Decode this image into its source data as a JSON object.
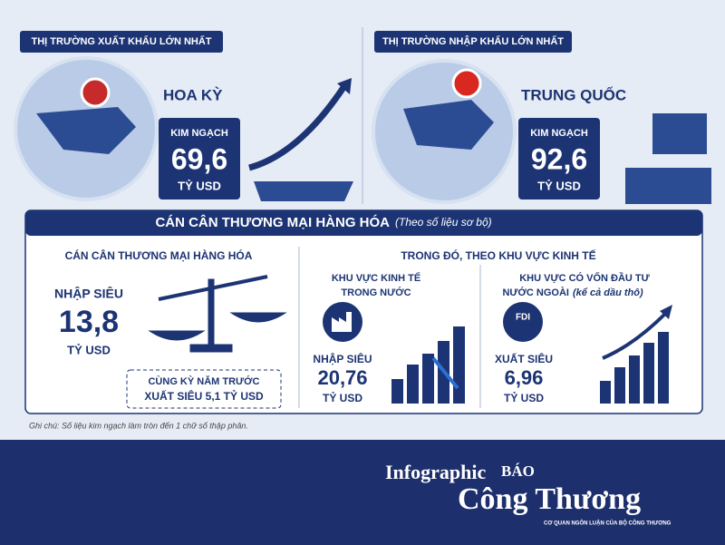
{
  "export": {
    "header": "THỊ TRƯỜNG XUẤT KHẨU LỚN NHẤT",
    "country": "HOA KỲ",
    "label": "KIM NGẠCH",
    "value": "69,6",
    "unit": "TỶ USD"
  },
  "import": {
    "header": "THỊ TRƯỜNG NHẬP KHẨU LỚN NHẤT",
    "country": "TRUNG QUỐC",
    "label": "KIM NGẠCH",
    "value": "92,6",
    "unit": "TỶ USD"
  },
  "balance": {
    "title": "CÁN CÂN THƯƠNG MẠI HÀNG HÓA",
    "subtitle": "(Theo số liệu sơ bộ)",
    "total": {
      "heading": "CÁN CÂN THƯƠNG MẠI HÀNG HÓA",
      "label": "NHẬP SIÊU",
      "value": "13,8",
      "unit": "TỶ USD",
      "previous_heading": "CÙNG KỲ NĂM TRƯỚC",
      "previous": "XUẤT SIÊU 5,1 TỶ USD"
    },
    "by_sector_heading": "TRONG ĐÓ, THEO KHU VỰC KINH TẾ",
    "domestic": {
      "title_1": "KHU VỰC KINH TẾ",
      "title_2": "TRONG NƯỚC",
      "label": "NHẬP SIÊU",
      "value": "20,76",
      "unit": "TỶ USD"
    },
    "foreign": {
      "title_1": "KHU VỰC CÓ VỐN ĐẦU TƯ",
      "title_2": "NƯỚC NGOÀI",
      "title_note": "(kể cả dầu thô)",
      "icon": "FDI",
      "label": "XUẤT SIÊU",
      "value": "6,96",
      "unit": "TỶ USD"
    }
  },
  "note": "Ghi chú: Số liệu kim ngạch làm tròn đến 1 chữ số thập phân.",
  "footer": {
    "label": "Infographic",
    "brand_1": "BÁO",
    "brand_2": "Công Thương",
    "tagline": "CƠ QUAN NGÔN LUẬN CỦA BỘ CÔNG THƯƠNG"
  }
}
